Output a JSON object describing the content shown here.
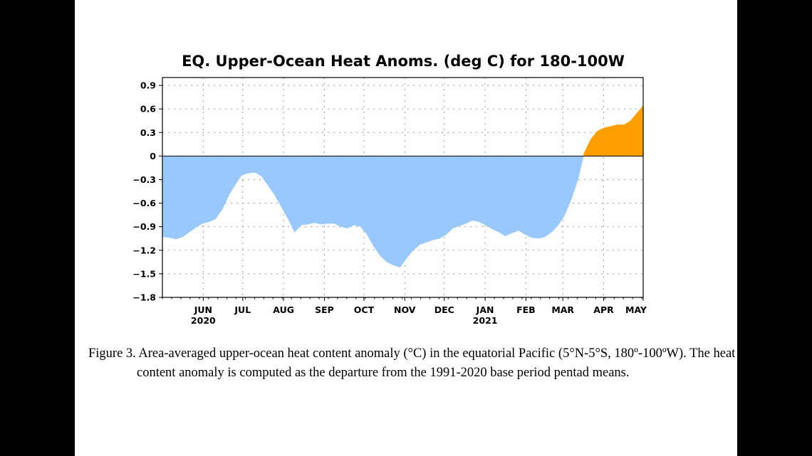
{
  "chart_data": {
    "type": "area",
    "title": "EQ. Upper-Ocean Heat Anoms. (deg C) for 180-100W",
    "xlabel": "",
    "ylabel": "",
    "ylim": [
      -1.8,
      1.0
    ],
    "yticks": [
      "0.9",
      "0.6",
      "0.3",
      "0",
      "-0.3",
      "-0.6",
      "-0.9",
      "-1.2",
      "-1.5",
      "-1.8"
    ],
    "xticks": [
      {
        "month": "JUN",
        "year": "2020"
      },
      {
        "month": "JUL",
        "year": ""
      },
      {
        "month": "AUG",
        "year": ""
      },
      {
        "month": "SEP",
        "year": ""
      },
      {
        "month": "OCT",
        "year": ""
      },
      {
        "month": "NOV",
        "year": ""
      },
      {
        "month": "DEC",
        "year": ""
      },
      {
        "month": "JAN",
        "year": "2021"
      },
      {
        "month": "FEB",
        "year": ""
      },
      {
        "month": "MAR",
        "year": ""
      },
      {
        "month": "APR",
        "year": ""
      },
      {
        "month": "MAY",
        "year": ""
      }
    ],
    "grid": true,
    "colors": {
      "positive": "#ff9f00",
      "negative": "#99c8ff"
    },
    "series": [
      {
        "x": [
          "2020-05-01",
          "2020-05-06",
          "2020-05-11",
          "2020-05-16",
          "2020-05-21",
          "2020-05-26",
          "2020-05-31",
          "2020-06-05",
          "2020-06-10",
          "2020-06-15",
          "2020-06-20",
          "2020-06-25",
          "2020-06-30",
          "2020-07-05",
          "2020-07-10",
          "2020-07-15",
          "2020-07-20",
          "2020-07-25",
          "2020-07-30",
          "2020-08-04",
          "2020-08-09",
          "2020-08-14",
          "2020-08-19",
          "2020-08-24",
          "2020-08-29",
          "2020-09-03",
          "2020-09-08",
          "2020-09-13",
          "2020-09-18",
          "2020-09-23",
          "2020-09-28",
          "2020-10-03",
          "2020-10-08",
          "2020-10-13",
          "2020-10-18",
          "2020-10-23",
          "2020-10-28",
          "2020-11-02",
          "2020-11-07",
          "2020-11-12",
          "2020-11-17",
          "2020-11-22",
          "2020-11-27",
          "2020-12-02",
          "2020-12-07",
          "2020-12-12",
          "2020-12-17",
          "2020-12-22",
          "2020-12-27",
          "2021-01-01",
          "2021-01-06",
          "2021-01-11",
          "2021-01-16",
          "2021-01-21",
          "2021-01-26",
          "2021-01-31",
          "2021-02-05",
          "2021-02-10",
          "2021-02-15",
          "2021-02-20",
          "2021-02-25",
          "2021-03-02",
          "2021-03-07",
          "2021-03-12",
          "2021-03-17",
          "2021-03-22",
          "2021-03-27",
          "2021-04-01",
          "2021-04-06",
          "2021-04-11",
          "2021-04-16",
          "2021-04-21",
          "2021-04-26",
          "2021-05-01"
        ],
        "values": [
          -1.03,
          -1.04,
          -1.06,
          -1.03,
          -0.97,
          -0.91,
          -0.86,
          -0.84,
          -0.8,
          -0.68,
          -0.5,
          -0.36,
          -0.24,
          -0.22,
          -0.21,
          -0.26,
          -0.38,
          -0.5,
          -0.65,
          -0.8,
          -0.97,
          -0.88,
          -0.87,
          -0.85,
          -0.87,
          -0.86,
          -0.86,
          -0.9,
          -0.92,
          -0.88,
          -0.9,
          -1.0,
          -1.15,
          -1.27,
          -1.35,
          -1.39,
          -1.42,
          -1.3,
          -1.2,
          -1.13,
          -1.1,
          -1.07,
          -1.05,
          -1.0,
          -0.92,
          -0.89,
          -0.86,
          -0.82,
          -0.84,
          -0.88,
          -0.93,
          -0.97,
          -1.02,
          -0.98,
          -0.95,
          -1.0,
          -1.04,
          -1.05,
          -1.03,
          -0.97,
          -0.88,
          -0.75,
          -0.55,
          -0.3,
          0.05,
          0.22,
          0.32,
          0.36,
          0.38,
          0.4,
          0.4,
          0.45,
          0.55,
          0.65
        ]
      }
    ]
  },
  "caption": "Figure 3. Area-averaged upper-ocean heat content anomaly (°C) in the equatorial Pacific (5°N-5°S, 180º-100ºW). The heat content anomaly is computed as the departure from the 1991-2020 base period pentad means."
}
